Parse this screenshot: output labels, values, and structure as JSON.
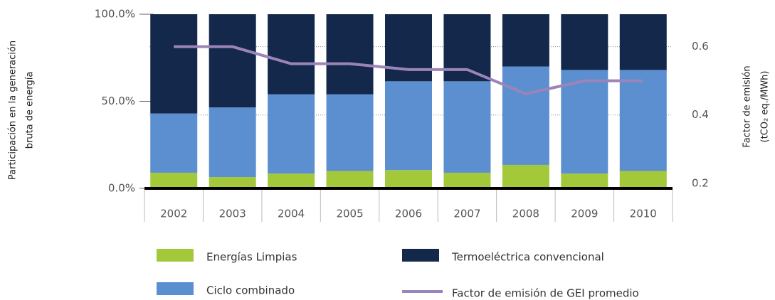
{
  "chart_data": {
    "type": "bar",
    "stacked": true,
    "y_label": [
      "Participación en la generación",
      "bruta de energía"
    ],
    "y2_label": [
      "Factor de emisión",
      "(tCO₂ eq./MWh)"
    ],
    "categories": [
      "2002",
      "2003",
      "2004",
      "2005",
      "2006",
      "2007",
      "2008",
      "2009",
      "2010"
    ],
    "series": [
      {
        "name": "Energías Limpias",
        "color": "#a3c93a",
        "values": [
          9,
          6.5,
          8.5,
          10,
          10.5,
          9,
          13.5,
          8.5,
          10
        ]
      },
      {
        "name": "Ciclo combinado",
        "color": "#5b8fd0",
        "values": [
          34,
          40,
          45.5,
          44,
          51,
          52.5,
          56.5,
          59.5,
          58
        ]
      },
      {
        "name": "Termoeléctrica convencional",
        "color": "#14284b",
        "values": [
          57,
          53.5,
          46,
          46,
          38.5,
          38.5,
          30,
          32,
          32
        ]
      },
      {
        "name": "Factor de emisión de GEI promedio",
        "color": "#9b84b9",
        "type": "line",
        "axis": "y2",
        "values": [
          0.6,
          0.6,
          0.55,
          0.55,
          0.533,
          0.533,
          0.462,
          0.5,
          0.5
        ]
      }
    ],
    "ylim": [
      0,
      100
    ],
    "yticks": [
      {
        "value": 0,
        "label": "0.0%"
      },
      {
        "value": 50,
        "label": "50.0%"
      },
      {
        "value": 100,
        "label": "100.0%"
      }
    ],
    "y2lim": [
      0.185,
      0.695
    ],
    "y2ticks": [
      0.2,
      0.4,
      0.6
    ],
    "grid": true
  }
}
